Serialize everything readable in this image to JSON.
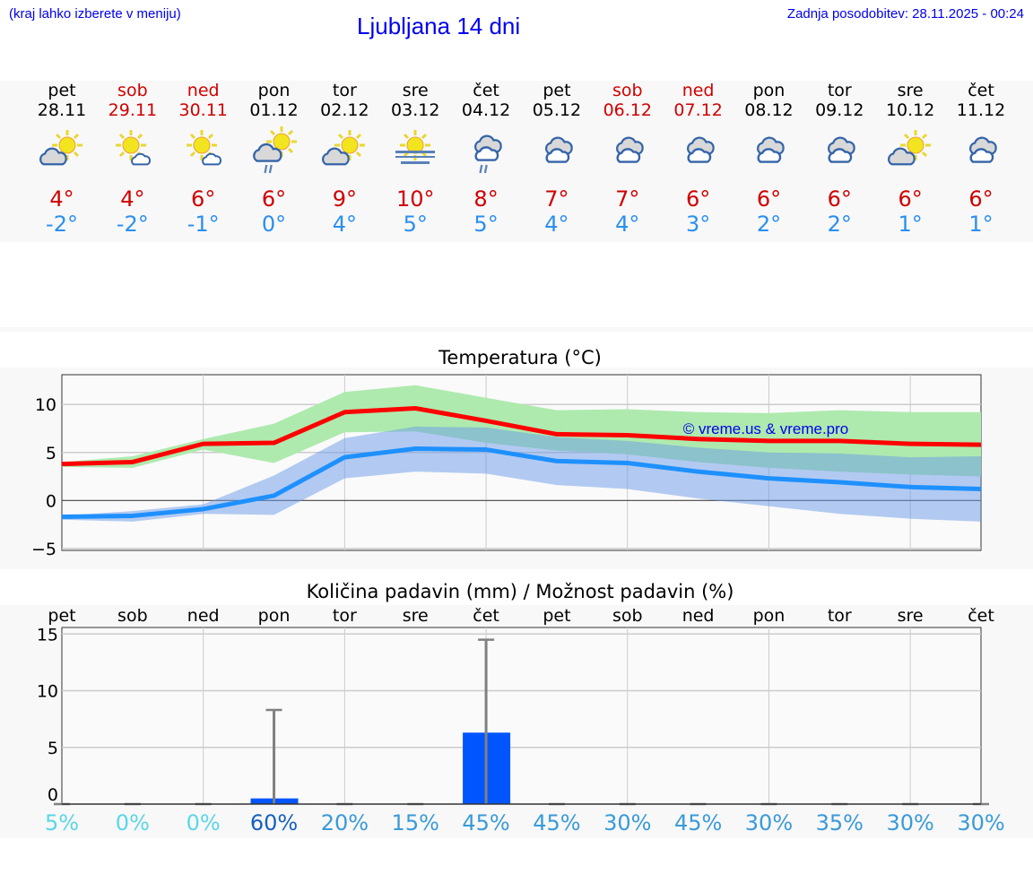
{
  "header": {
    "hint": "(kraj lahko izberete v meniju)",
    "title": "Ljubljana 14 dni",
    "updated": "Zadnja posodobitev: 28.11.2025 - 00:24"
  },
  "days": [
    {
      "name": "pet",
      "date": "28.11",
      "weekend": false,
      "icon": "partly-cloudy",
      "tmax": "4°",
      "tmin": "-2°"
    },
    {
      "name": "sob",
      "date": "29.11",
      "weekend": true,
      "icon": "sunny-small-cloud",
      "tmax": "4°",
      "tmin": "-2°"
    },
    {
      "name": "ned",
      "date": "30.11",
      "weekend": true,
      "icon": "sunny-small-cloud",
      "tmax": "6°",
      "tmin": "-1°"
    },
    {
      "name": "pon",
      "date": "01.12",
      "weekend": false,
      "icon": "partly-cloudy-rain",
      "tmax": "6°",
      "tmin": "0°"
    },
    {
      "name": "tor",
      "date": "02.12",
      "weekend": false,
      "icon": "partly-cloudy",
      "tmax": "9°",
      "tmin": "4°"
    },
    {
      "name": "sre",
      "date": "03.12",
      "weekend": false,
      "icon": "sun-fog",
      "tmax": "10°",
      "tmin": "5°"
    },
    {
      "name": "čet",
      "date": "04.12",
      "weekend": false,
      "icon": "cloudy-rain",
      "tmax": "8°",
      "tmin": "5°"
    },
    {
      "name": "pet",
      "date": "05.12",
      "weekend": false,
      "icon": "cloudy",
      "tmax": "7°",
      "tmin": "4°"
    },
    {
      "name": "sob",
      "date": "06.12",
      "weekend": true,
      "icon": "cloudy",
      "tmax": "7°",
      "tmin": "4°"
    },
    {
      "name": "ned",
      "date": "07.12",
      "weekend": true,
      "icon": "cloudy",
      "tmax": "6°",
      "tmin": "3°"
    },
    {
      "name": "pon",
      "date": "08.12",
      "weekend": false,
      "icon": "cloudy",
      "tmax": "6°",
      "tmin": "2°"
    },
    {
      "name": "tor",
      "date": "09.12",
      "weekend": false,
      "icon": "cloudy",
      "tmax": "6°",
      "tmin": "2°"
    },
    {
      "name": "sre",
      "date": "10.12",
      "weekend": false,
      "icon": "partly-cloudy",
      "tmax": "6°",
      "tmin": "1°"
    },
    {
      "name": "čet",
      "date": "11.12",
      "weekend": false,
      "icon": "cloudy",
      "tmax": "6°",
      "tmin": "1°"
    }
  ],
  "colors": {
    "max": "#ff0000",
    "min": "#1e90ff",
    "max_band": "#aeeaae",
    "min_band": "#aec8f2",
    "bar": "#0055ff",
    "error": "#808080",
    "pct_low": "#5ad6e8",
    "pct_high": "#1560c0",
    "pct_mid": "#3a9ad9"
  },
  "chart_data": [
    {
      "type": "line",
      "title": "Temperatura (°C)",
      "watermark": "© vreme.us & vreme.pro",
      "categories": [
        "28.11",
        "29.11",
        "30.11",
        "01.12",
        "02.12",
        "03.12",
        "04.12",
        "05.12",
        "06.12",
        "07.12",
        "08.12",
        "09.12",
        "10.12",
        "11.12"
      ],
      "ylim": [
        -5.2,
        13.1
      ],
      "yticks": [
        -5,
        0,
        5,
        10
      ],
      "series": [
        {
          "values": [
            3.8,
            4.0,
            5.9,
            6.0,
            9.2,
            9.6,
            8.3,
            6.9,
            6.8,
            6.4,
            6.2,
            6.2,
            5.9,
            5.8
          ],
          "band_upper": [
            4.0,
            4.6,
            6.4,
            8.0,
            11.3,
            12.0,
            10.7,
            9.4,
            9.5,
            9.2,
            9.1,
            9.4,
            9.2,
            9.2
          ],
          "band_lower": [
            3.5,
            3.4,
            5.3,
            3.9,
            7.1,
            7.2,
            6.0,
            5.2,
            4.8,
            4.0,
            3.4,
            3.0,
            2.7,
            2.5
          ]
        },
        {
          "values": [
            -1.7,
            -1.6,
            -0.9,
            0.5,
            4.5,
            5.4,
            5.3,
            4.1,
            3.9,
            3.0,
            2.3,
            1.9,
            1.4,
            1.2
          ],
          "band_upper": [
            -1.6,
            -1.1,
            -0.4,
            2.6,
            6.5,
            7.7,
            7.6,
            6.6,
            6.2,
            5.5,
            5.0,
            4.9,
            4.5,
            4.6
          ],
          "band_lower": [
            -2.0,
            -2.2,
            -1.4,
            -1.5,
            2.3,
            3.0,
            2.8,
            1.6,
            1.2,
            0.2,
            -0.6,
            -1.4,
            -1.9,
            -2.2
          ]
        }
      ]
    },
    {
      "type": "bar",
      "title": "Količina padavin (mm) / Možnost padavin (%)",
      "categories": [
        "pet",
        "sob",
        "ned",
        "pon",
        "tor",
        "sre",
        "čet",
        "pet",
        "sob",
        "ned",
        "pon",
        "tor",
        "sre",
        "čet"
      ],
      "ylim": [
        -0.5,
        15.5
      ],
      "yticks": [
        0,
        5,
        10,
        15
      ],
      "values": [
        0,
        0,
        0,
        0.5,
        0,
        0,
        6.3,
        0,
        0,
        0,
        0,
        0,
        0,
        0
      ],
      "error_upper": [
        0,
        0,
        0,
        8.3,
        0,
        0,
        14.5,
        0,
        0,
        0,
        0,
        0,
        0,
        0
      ],
      "probability": [
        "5%",
        "0%",
        "0%",
        "60%",
        "20%",
        "15%",
        "45%",
        "45%",
        "30%",
        "45%",
        "30%",
        "35%",
        "30%",
        "30%"
      ]
    }
  ]
}
